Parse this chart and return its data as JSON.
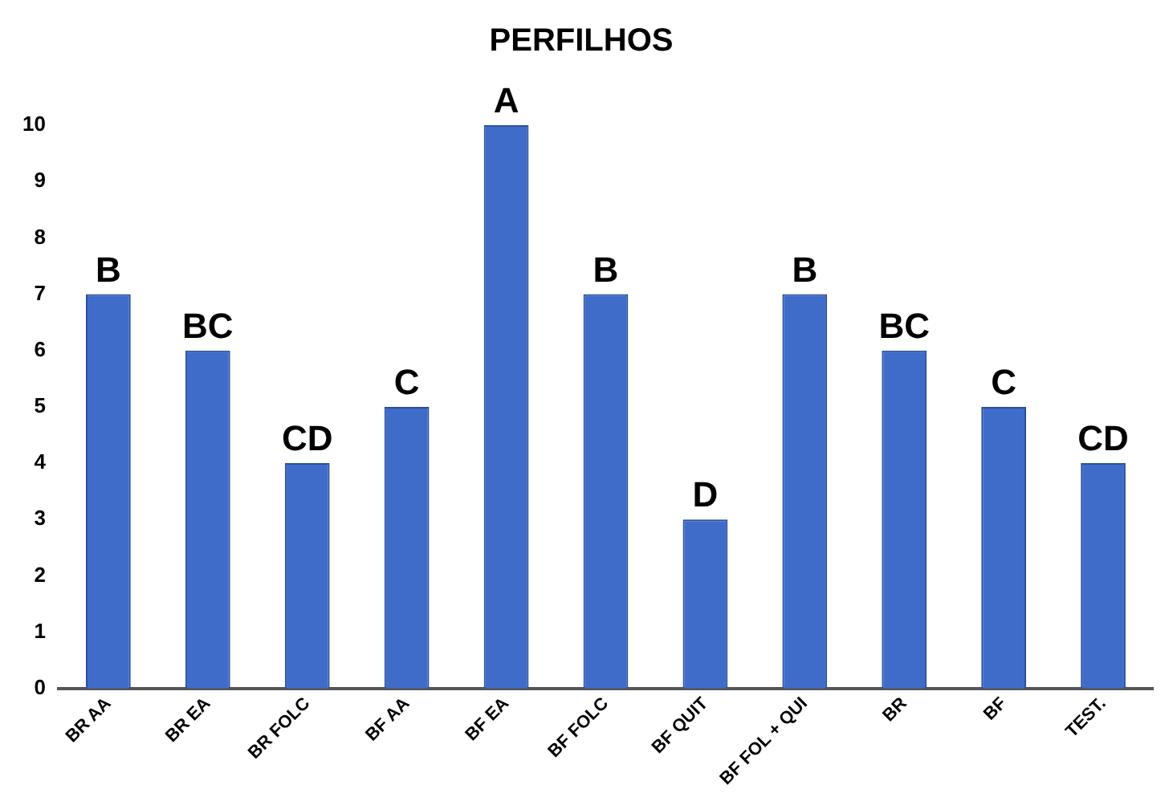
{
  "chart_data": {
    "type": "bar",
    "title": "PERFILHOS",
    "categories": [
      "BR AA",
      "BR EA",
      "BR FOLC",
      "BF AA",
      "BF EA",
      "BF FOLC",
      "BF QUIT",
      "BF FOL + QUI",
      "BR",
      "BF",
      "TEST."
    ],
    "values": [
      7,
      6,
      4,
      5,
      10,
      7,
      3,
      7,
      6,
      5,
      4
    ],
    "color": "#3f6cc9",
    "ylim": [
      0,
      10
    ],
    "yticks": [
      0,
      1,
      2,
      3,
      4,
      5,
      6,
      7,
      8,
      9,
      10
    ],
    "grid": false,
    "legend": false,
    "annotations": [
      {
        "text": "B",
        "x": "BR AA",
        "y": 7
      },
      {
        "text": "BC",
        "x": "BR EA",
        "y": 6
      },
      {
        "text": "CD",
        "x": "BR FOLC",
        "y": 4
      },
      {
        "text": "C",
        "x": "BF AA",
        "y": 5
      },
      {
        "text": "A",
        "x": "BF EA",
        "y": 10
      },
      {
        "text": "B",
        "x": "BF FOLC",
        "y": 7
      },
      {
        "text": "D",
        "x": "BF QUIT",
        "y": 3
      },
      {
        "text": "B",
        "x": "BF FOL + QUI",
        "y": 7
      },
      {
        "text": "BC",
        "x": "BR",
        "y": 6
      },
      {
        "text": "C",
        "x": "BF",
        "y": 5
      },
      {
        "text": "CD",
        "x": "TEST.",
        "y": 4
      }
    ]
  }
}
